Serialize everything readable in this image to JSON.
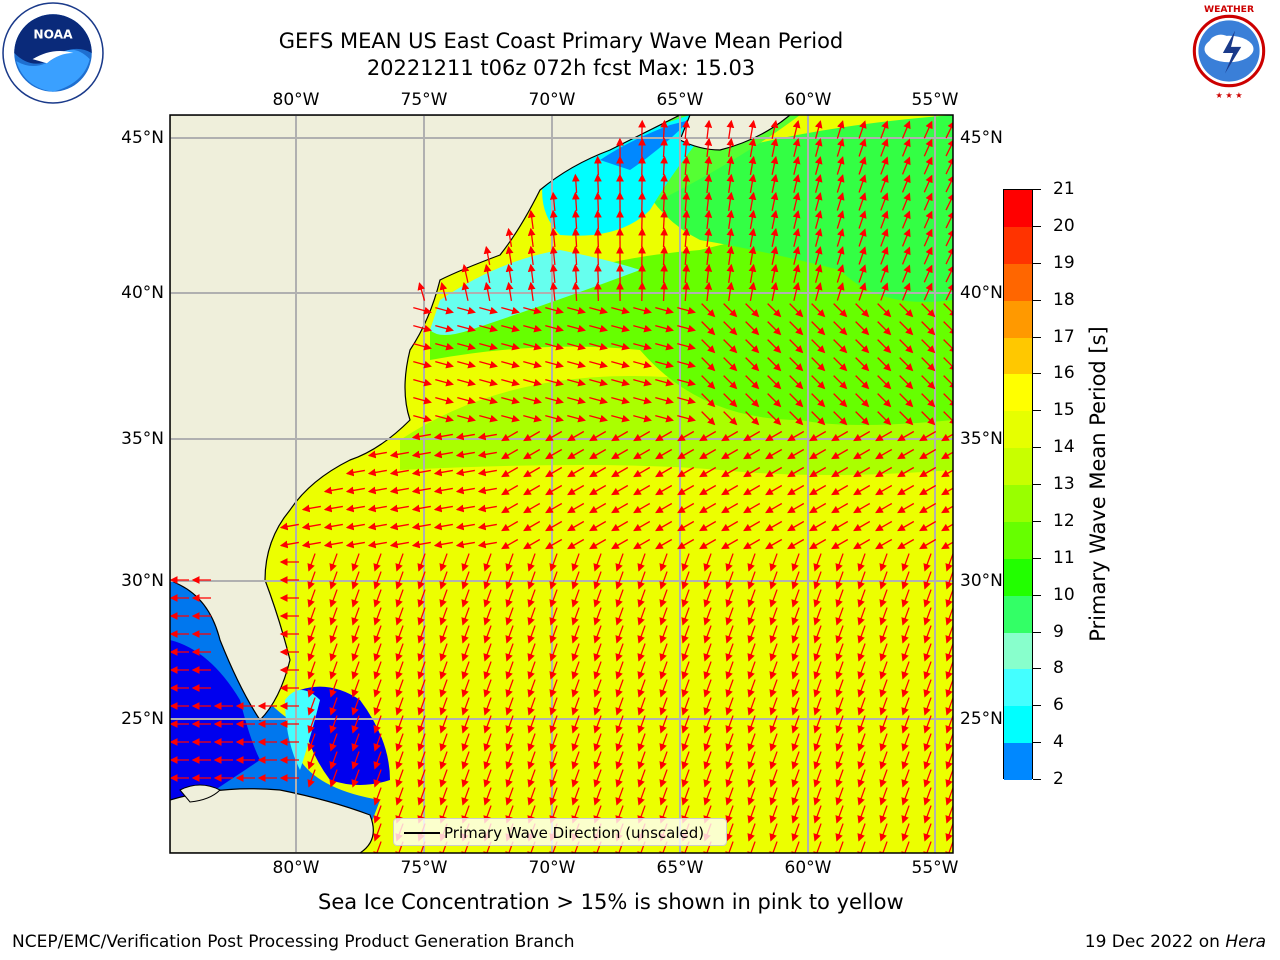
{
  "header": {
    "title_line1": "GEFS MEAN US East Coast Primary Wave Mean Period",
    "title_line2": "20221211 t06z 072h fcst   Max: 15.03"
  },
  "axes": {
    "lon_labels": [
      "80°W",
      "75°W",
      "70°W",
      "65°W",
      "60°W",
      "55°W"
    ],
    "lat_labels": [
      "45°N",
      "40°N",
      "35°N",
      "30°N",
      "25°N"
    ]
  },
  "colorbar": {
    "label": "Primary Wave Mean Period [s]",
    "ticks": [
      "21",
      "20",
      "19",
      "18",
      "17",
      "16",
      "15",
      "14",
      "13",
      "12",
      "11",
      "10",
      "9",
      "8",
      "6",
      "4",
      "2"
    ],
    "colors": [
      "#ff0000",
      "#ff3300",
      "#ff6600",
      "#ff9900",
      "#ffc800",
      "#ffff00",
      "#e6ff00",
      "#c8ff00",
      "#99ff00",
      "#66ff00",
      "#22ff00",
      "#33ff66",
      "#88ffcc",
      "#44ffff",
      "#00ffff",
      "#0088ff",
      "#0000ff"
    ]
  },
  "legend": {
    "text": "Primary Wave Direction (unscaled)"
  },
  "subtitle": "Sea Ice Concentration > 15% is shown in pink to yellow",
  "footer": {
    "left": "NCEP/EMC/Verification Post Processing Product Generation Branch",
    "right_date": "19 Dec 2022 on ",
    "right_machine": "Hera"
  },
  "logos": {
    "left": "noaa-logo",
    "right": "nws-logo"
  }
}
